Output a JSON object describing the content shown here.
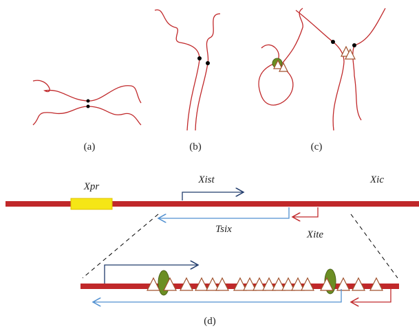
{
  "panel_labels": [
    "(a)",
    "(b)",
    "(c)",
    "(d)"
  ],
  "gene_labels": {
    "xpr": "Xpr",
    "xist": "Xist",
    "xic": "Xic",
    "tsix": "Tsix",
    "xite": "Xite"
  }
}
